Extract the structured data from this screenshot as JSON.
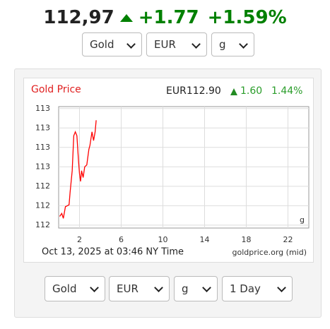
{
  "header": {
    "price": "112,97",
    "change": "+1.77",
    "change_pct": "+1.59%"
  },
  "top_selects": [
    "Gold",
    "EUR",
    "g"
  ],
  "chart_data": {
    "type": "line",
    "title": "Gold Price",
    "price": "EUR112.90",
    "change": "1.60",
    "change_pct": "1.44%",
    "unit_label": "g",
    "timestamp": "Oct 13, 2025 at 03:46 NY Time",
    "source": "goldprice.org (mid)",
    "x": [
      0.1,
      0.3,
      0.45,
      0.65,
      0.85,
      1.0,
      1.1,
      1.3,
      1.45,
      1.6,
      1.75,
      1.9,
      2.0,
      2.1,
      2.2,
      2.35,
      2.5,
      2.7,
      2.9,
      3.0,
      3.2,
      3.35,
      3.5,
      3.6
    ],
    "series": [
      {
        "name": "Gold Price",
        "color": "#ff0000",
        "values": [
          112.09,
          112.12,
          112.07,
          112.19,
          112.2,
          112.21,
          112.34,
          112.56,
          112.92,
          112.96,
          112.92,
          112.67,
          112.53,
          112.45,
          112.56,
          112.49,
          112.6,
          112.62,
          112.78,
          112.82,
          112.96,
          112.87,
          112.96,
          113.08
        ]
      }
    ],
    "xlim": [
      0,
      24
    ],
    "xticks": [
      2,
      6,
      10,
      14,
      18,
      22
    ],
    "ylim": [
      111.97,
      113.22
    ],
    "yticks": [
      {
        "value": 113.2,
        "label": "113"
      },
      {
        "value": 113.0,
        "label": "113"
      },
      {
        "value": 112.8,
        "label": "113"
      },
      {
        "value": 112.6,
        "label": "113"
      },
      {
        "value": 112.4,
        "label": "112"
      },
      {
        "value": 112.2,
        "label": "112"
      },
      {
        "value": 112.0,
        "label": "112"
      }
    ],
    "grid": true
  },
  "bottom_selects": [
    "Gold",
    "EUR",
    "g",
    "1 Day"
  ]
}
